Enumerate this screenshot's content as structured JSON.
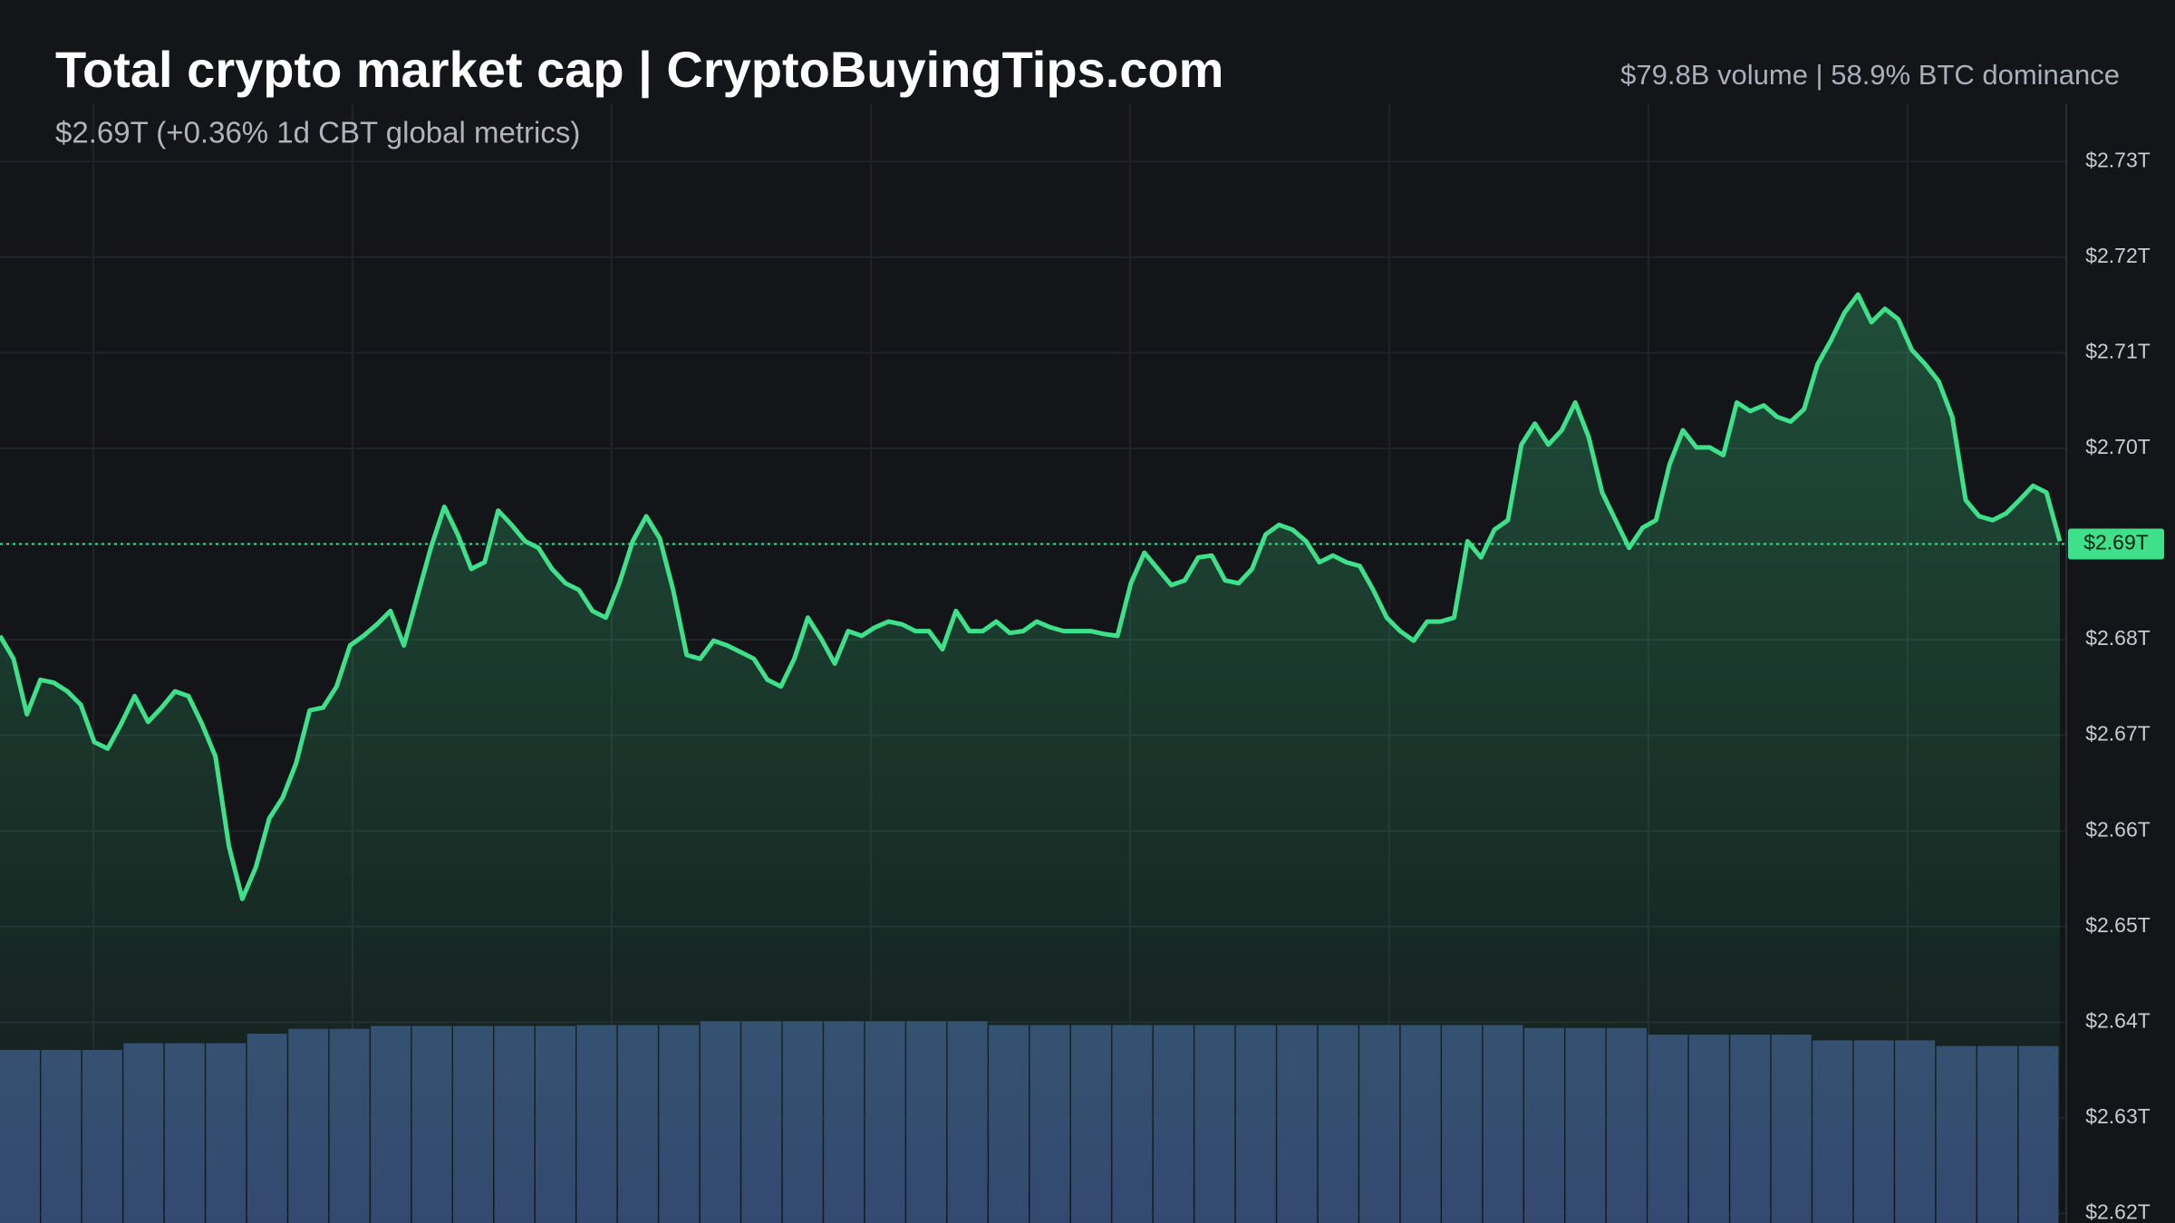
{
  "chart_data": {
    "type": "area",
    "title": "Total crypto market cap | CryptoBuyingTips.com",
    "subtitle": "$2.69T (+0.36% 1d CBT global metrics)",
    "stats": "$79.8B volume | 58.9% BTC dominance",
    "color": "#3ee08a",
    "values": [
      2.6804,
      2.678,
      2.6722,
      2.6758,
      2.6755,
      2.6746,
      2.6732,
      2.6693,
      2.6686,
      2.6712,
      2.6741,
      2.6714,
      2.6729,
      2.6746,
      2.6741,
      2.6712,
      2.6678,
      2.6584,
      2.6529,
      2.6562,
      2.6613,
      2.6635,
      2.6671,
      2.6726,
      2.6729,
      2.6751,
      2.6794,
      2.6804,
      2.6816,
      2.683,
      2.6794,
      2.6845,
      2.6896,
      2.6939,
      2.691,
      2.6874,
      2.6881,
      2.6935,
      2.692,
      2.6903,
      2.6896,
      2.6874,
      2.6859,
      2.6852,
      2.683,
      2.6823,
      2.6859,
      2.6903,
      2.6929,
      2.6906,
      2.6852,
      2.6784,
      2.678,
      2.6799,
      2.6794,
      2.6787,
      2.678,
      2.6758,
      2.6751,
      2.678,
      2.6823,
      2.6801,
      2.6775,
      2.6809,
      2.6804,
      2.6813,
      2.6819,
      2.6816,
      2.6809,
      2.6809,
      2.679,
      2.683,
      2.6809,
      2.6809,
      2.6819,
      2.6807,
      2.6809,
      2.6819,
      2.6813,
      2.6809,
      2.6809,
      2.6809,
      2.6806,
      2.6804,
      2.6859,
      2.6891,
      2.6874,
      2.6857,
      2.6862,
      2.6886,
      2.6888,
      2.6862,
      2.6859,
      2.6874,
      2.691,
      2.692,
      2.6915,
      2.6903,
      2.6881,
      2.6888,
      2.6881,
      2.6877,
      2.6852,
      2.6823,
      2.6809,
      2.6799,
      2.6819,
      2.6819,
      2.6823,
      2.6903,
      2.6886,
      2.6915,
      2.6925,
      2.7004,
      2.7026,
      2.7004,
      2.7019,
      2.7048,
      2.7012,
      2.6954,
      2.6925,
      2.6896,
      2.6917,
      2.6925,
      2.6983,
      2.7019,
      2.7001,
      2.7001,
      2.6993,
      2.7048,
      2.7039,
      2.7045,
      2.7033,
      2.7028,
      2.7041,
      2.7088,
      2.7113,
      2.7142,
      2.7161,
      2.7132,
      2.7146,
      2.7135,
      2.7103,
      2.7088,
      2.707,
      2.7033,
      2.6946,
      2.6929,
      2.6925,
      2.6932,
      2.6946,
      2.6961,
      2.6954,
      2.6903
    ],
    "volume": {
      "color": "#34466f",
      "values": [
        2.6371,
        2.6371,
        2.6371,
        2.6378,
        2.6378,
        2.6378,
        2.6388,
        2.6393,
        2.6393,
        2.6396,
        2.6396,
        2.6396,
        2.6396,
        2.6396,
        2.6397,
        2.6397,
        2.6397,
        2.6401,
        2.6401,
        2.6401,
        2.6401,
        2.6401,
        2.6401,
        2.6401,
        2.6397,
        2.6397,
        2.6397,
        2.6397,
        2.6397,
        2.6397,
        2.6397,
        2.6397,
        2.6397,
        2.6397,
        2.6397,
        2.6397,
        2.6397,
        2.6394,
        2.6394,
        2.6394,
        2.6387,
        2.6387,
        2.6387,
        2.6387,
        2.6381,
        2.6381,
        2.6381,
        2.6375,
        2.6375,
        2.6375
      ]
    },
    "current": {
      "value": 2.69,
      "label": "$2.69T"
    },
    "ylim": [
      2.619,
      2.736
    ],
    "yticks": [
      {
        "value": 2.62,
        "label": "$2.62T"
      },
      {
        "value": 2.63,
        "label": "$2.63T"
      },
      {
        "value": 2.64,
        "label": "$2.64T"
      },
      {
        "value": 2.65,
        "label": "$2.65T"
      },
      {
        "value": 2.66,
        "label": "$2.66T"
      },
      {
        "value": 2.67,
        "label": "$2.67T"
      },
      {
        "value": 2.68,
        "label": "$2.68T"
      },
      {
        "value": 2.69,
        "label": "$2.69T"
      },
      {
        "value": 2.7,
        "label": "$2.70T"
      },
      {
        "value": 2.71,
        "label": "$2.71T"
      },
      {
        "value": 2.72,
        "label": "$2.72T"
      },
      {
        "value": 2.73,
        "label": "$2.73T"
      }
    ],
    "grid": true
  }
}
